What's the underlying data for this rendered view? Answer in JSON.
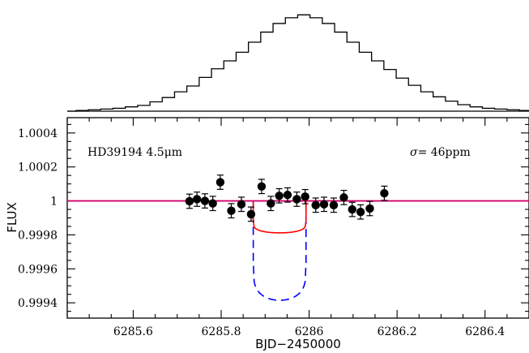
{
  "chart_data": [
    {
      "type": "histogram",
      "title": "",
      "values": [
        1,
        2,
        3,
        4,
        6,
        8,
        13,
        19,
        27,
        35,
        47,
        59,
        70,
        82,
        96,
        110,
        122,
        130,
        134,
        130,
        122,
        110,
        96,
        82,
        70,
        58,
        46,
        36,
        27,
        20,
        14,
        9,
        6,
        4,
        3,
        2,
        1
      ],
      "x_start": 6285.47,
      "bin_width": 0.028,
      "ylim": [
        0,
        140
      ]
    },
    {
      "type": "scatter",
      "xlabel": "BJD−2450000",
      "ylabel": "FLUX",
      "xlim": [
        6285.45,
        6286.5
      ],
      "ylim": [
        0.99931,
        1.00049
      ],
      "xticks": [
        6285.6,
        6285.8,
        6286,
        6286.2,
        6286.4
      ],
      "xtick_labels": [
        "6285.6",
        "6285.8",
        "6286",
        "6286.2",
        "6286.4"
      ],
      "yticks": [
        0.9994,
        0.9996,
        0.9998,
        1,
        1.0002,
        1.0004
      ],
      "ytick_labels": [
        "0.9994",
        "0.9996",
        "0.9998",
        "1",
        "1.0002",
        "1.0004"
      ],
      "annotation_left": {
        "label": "HD39194 4.5",
        "unit": "μm"
      },
      "annotation_right": {
        "symbol": "σ",
        "text": "= 46ppm"
      },
      "points": [
        {
          "x": 6285.728,
          "y": 0.999998,
          "err": 4.2e-05
        },
        {
          "x": 6285.745,
          "y": 1.00001,
          "err": 4.2e-05
        },
        {
          "x": 6285.763,
          "y": 1.0,
          "err": 4.2e-05
        },
        {
          "x": 6285.781,
          "y": 0.999985,
          "err": 4.2e-05
        },
        {
          "x": 6285.798,
          "y": 1.00011,
          "err": 4.2e-05
        },
        {
          "x": 6285.823,
          "y": 0.999942,
          "err": 4.2e-05
        },
        {
          "x": 6285.846,
          "y": 0.99998,
          "err": 4.2e-05
        },
        {
          "x": 6285.868,
          "y": 0.999922,
          "err": 4.2e-05
        },
        {
          "x": 6285.892,
          "y": 1.000085,
          "err": 4.2e-05
        },
        {
          "x": 6285.913,
          "y": 0.999985,
          "err": 4.2e-05
        },
        {
          "x": 6285.932,
          "y": 1.00003,
          "err": 4.2e-05
        },
        {
          "x": 6285.951,
          "y": 1.000035,
          "err": 4.2e-05
        },
        {
          "x": 6285.972,
          "y": 1.00001,
          "err": 4.2e-05
        },
        {
          "x": 6285.991,
          "y": 1.000025,
          "err": 4.2e-05
        },
        {
          "x": 6286.015,
          "y": 0.999975,
          "err": 4.2e-05
        },
        {
          "x": 6286.034,
          "y": 0.99998,
          "err": 4.2e-05
        },
        {
          "x": 6286.056,
          "y": 0.999975,
          "err": 4.2e-05
        },
        {
          "x": 6286.079,
          "y": 1.00002,
          "err": 4.2e-05
        },
        {
          "x": 6286.098,
          "y": 0.99995,
          "err": 4.2e-05
        },
        {
          "x": 6286.117,
          "y": 0.999935,
          "err": 4.2e-05
        },
        {
          "x": 6286.138,
          "y": 0.999955,
          "err": 4.2e-05
        },
        {
          "x": 6286.171,
          "y": 1.000045,
          "err": 4.2e-05
        }
      ],
      "baseline": {
        "y": 1.0,
        "color": "#d0006f"
      },
      "model_red": {
        "color": "#ff0000",
        "t1": 6285.873,
        "t2": 6285.993,
        "depth": 0.000188,
        "edge": 0.0055
      },
      "model_blue": {
        "color": "#0000ff",
        "t1": 6285.873,
        "t2": 6285.993,
        "depth": 0.000585,
        "edge": 0.0055
      }
    }
  ]
}
